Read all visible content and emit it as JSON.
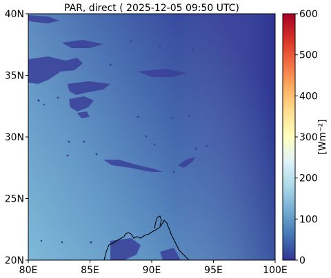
{
  "title": "PAR, direct ( 2025-12-05 09:50 UTC)",
  "map": {
    "lon_range": [
      80,
      100
    ],
    "lat_range": [
      20,
      40
    ],
    "x_ticks": [
      "80E",
      "85E",
      "90E",
      "95E",
      "100E"
    ],
    "y_ticks": [
      "20N",
      "25N",
      "30N",
      "35N",
      "40N"
    ],
    "field_trend": "higher toward the southwest (~150-190 W m-2), lowest toward the east and northeast (~20-40 W m-2)",
    "coastline": "Bay of Bengal / Bangladesh coast near 86-94E, 20-23.5N"
  },
  "colorbar": {
    "label": "[Wm⁻²]",
    "range": [
      0,
      600
    ],
    "ticks": [
      "0",
      "100",
      "200",
      "300",
      "400",
      "500",
      "600"
    ],
    "colormap": "RdYlBu_r",
    "stops": [
      "#313695",
      "#4575b4",
      "#74add1",
      "#abd9e9",
      "#e0f3f8",
      "#ffffbf",
      "#fee090",
      "#fdae61",
      "#f46d43",
      "#d73027",
      "#a50026"
    ]
  }
}
